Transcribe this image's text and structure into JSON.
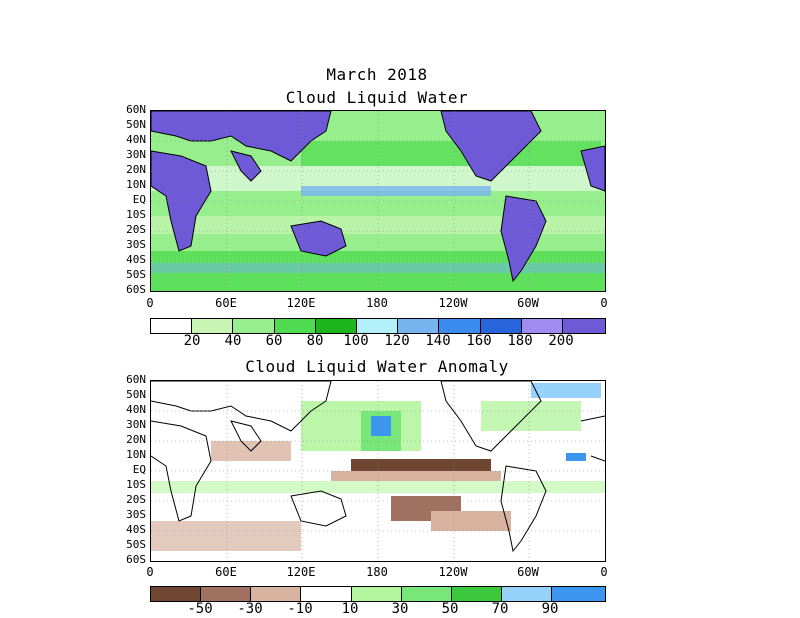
{
  "header": {
    "period": "March 2018"
  },
  "maps": [
    {
      "title": "Cloud Liquid Water",
      "lat_labels": [
        "60N",
        "50N",
        "40N",
        "30N",
        "20N",
        "10N",
        "EQ",
        "10S",
        "20S",
        "30S",
        "40S",
        "50S",
        "60S"
      ],
      "lon_labels": [
        "0",
        "60E",
        "120E",
        "180",
        "120W",
        "60W",
        "0"
      ],
      "colorbar": {
        "colors": [
          "#ffffff",
          "#c8f5b4",
          "#96ee8c",
          "#50dc50",
          "#1eb41e",
          "#b4f0fa",
          "#78b4f0",
          "#3c8cf0",
          "#2864dc",
          "#a08cf0",
          "#6e5ad6"
        ],
        "labels": [
          "20",
          "40",
          "60",
          "80",
          "100",
          "120",
          "140",
          "160",
          "180",
          "200"
        ]
      },
      "land_color": "#6e5ad6"
    },
    {
      "title": "Cloud Liquid Water Anomaly",
      "lat_labels": [
        "60N",
        "50N",
        "40N",
        "30N",
        "20N",
        "10N",
        "EQ",
        "10S",
        "20S",
        "30S",
        "40S",
        "50S",
        "60S"
      ],
      "lon_labels": [
        "0",
        "60E",
        "120E",
        "180",
        "120W",
        "60W",
        "0"
      ],
      "colorbar": {
        "colors": [
          "#6e4632",
          "#a07060",
          "#d8b4a0",
          "#ffffff",
          "#b4f5a0",
          "#78e678",
          "#3cc83c",
          "#96d2fa",
          "#3c96f0"
        ],
        "labels": [
          "-50",
          "-30",
          "-10",
          "10",
          "30",
          "50",
          "70",
          "90"
        ]
      },
      "land_color": "#ffffff"
    }
  ]
}
